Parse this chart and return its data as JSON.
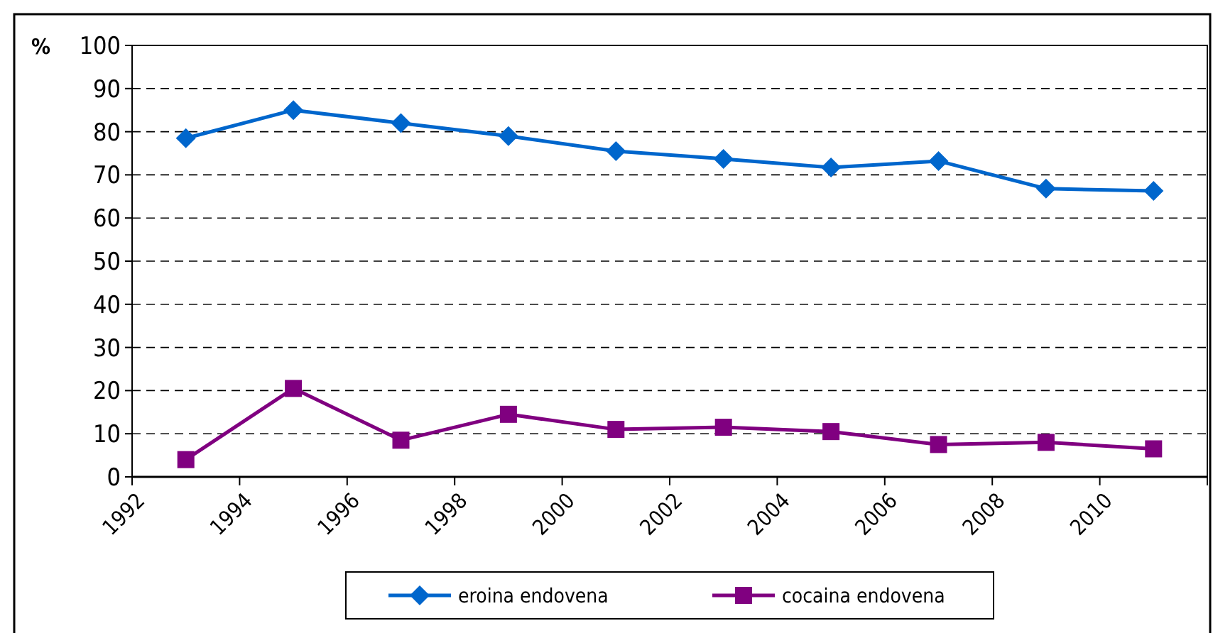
{
  "chart_data": {
    "type": "line",
    "ylabel": "%",
    "x": [
      1993,
      1995,
      1997,
      1999,
      2001,
      2003,
      2005,
      2007,
      2009,
      2011
    ],
    "series": [
      {
        "name": "eroina endovena",
        "color": "#0066cc",
        "marker": "diamond",
        "values": [
          78.5,
          85,
          82,
          79,
          75.5,
          73.7,
          71.7,
          73.2,
          66.8,
          66.3
        ]
      },
      {
        "name": "cocaina endovena",
        "color": "#800080",
        "marker": "square",
        "values": [
          4,
          20.5,
          8.5,
          14.5,
          11,
          11.5,
          10.5,
          7.5,
          8,
          6.5
        ]
      }
    ],
    "xlim": [
      1992,
      2012
    ],
    "xticks": [
      1992,
      1994,
      1996,
      1998,
      2000,
      2002,
      2004,
      2006,
      2008,
      2010,
      {
        "value": 2012,
        "label": null
      }
    ],
    "ylim": [
      0,
      100
    ],
    "yticks": [
      0,
      10,
      20,
      30,
      40,
      50,
      60,
      70,
      80,
      90,
      100
    ],
    "grid": "y",
    "legend": "bottom",
    "line_style": "solid"
  }
}
